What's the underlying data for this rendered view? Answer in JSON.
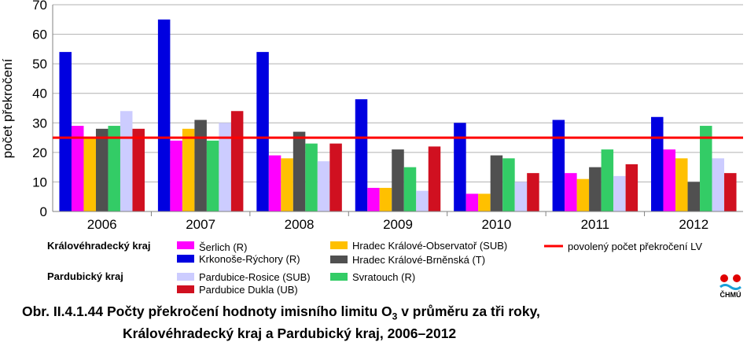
{
  "chart_data": {
    "type": "bar",
    "ylabel": "počet překročení",
    "ylim": [
      0,
      70
    ],
    "yticks": [
      0,
      10,
      20,
      30,
      40,
      50,
      60,
      70
    ],
    "grid": true,
    "categories": [
      "2006",
      "2007",
      "2008",
      "2009",
      "2010",
      "2011",
      "2012"
    ],
    "series": [
      {
        "name": "Krkonoše-Rýchory (R)",
        "color": "#0000e0",
        "values": [
          54,
          65,
          54,
          38,
          30,
          31,
          32
        ]
      },
      {
        "name": "Šerlich (R)",
        "color": "#ff00ff",
        "values": [
          29,
          24,
          19,
          8,
          6,
          13,
          21
        ]
      },
      {
        "name": "Hradec Králové-Observatoř (SUB)",
        "color": "#ffc000",
        "values": [
          25,
          28,
          18,
          8,
          6,
          11,
          18
        ]
      },
      {
        "name": "Hradec Králové-Brněnská (T)",
        "color": "#505050",
        "values": [
          28,
          31,
          27,
          21,
          19,
          15,
          10
        ]
      },
      {
        "name": "Svratouch (R)",
        "color": "#33cc66",
        "values": [
          29,
          24,
          23,
          15,
          18,
          21,
          29
        ]
      },
      {
        "name": "Pardubice-Rosice (SUB)",
        "color": "#ccccff",
        "values": [
          34,
          30,
          17,
          7,
          10,
          12,
          18
        ]
      },
      {
        "name": "Pardubice Dukla (UB)",
        "color": "#d01020",
        "values": [
          28,
          34,
          23,
          22,
          13,
          16,
          13
        ]
      }
    ],
    "limit_line": {
      "name": "povolený počet překročení LV",
      "value": 25,
      "color": "#ff0000"
    },
    "legend": {
      "position": "bottom",
      "groups": [
        {
          "label": "Královéhradecký kraj",
          "items": [
            "Šerlich (R)",
            "Krkonoše-Rýchory (R)",
            "Hradec Králové-Observatoř (SUB)",
            "Hradec Králové-Brněnská (T)"
          ]
        },
        {
          "label": "Pardubický kraj",
          "items": [
            "Pardubice-Rosice (SUB)",
            "Pardubice Dukla (UB)",
            "Svratouch (R)"
          ]
        }
      ]
    }
  },
  "caption": {
    "prefix": "Obr. II.4.1.44  Počty překročení hodnoty imisního limitu O",
    "subscript": "3",
    "suffix": " v průměru za tři roky,",
    "line2": "Královéhradecký kraj a Pardubický kraj, 2006–2012"
  },
  "logo": {
    "text": "ČHMÚ",
    "color": "#e00000",
    "accent": "#1aa0d8"
  }
}
